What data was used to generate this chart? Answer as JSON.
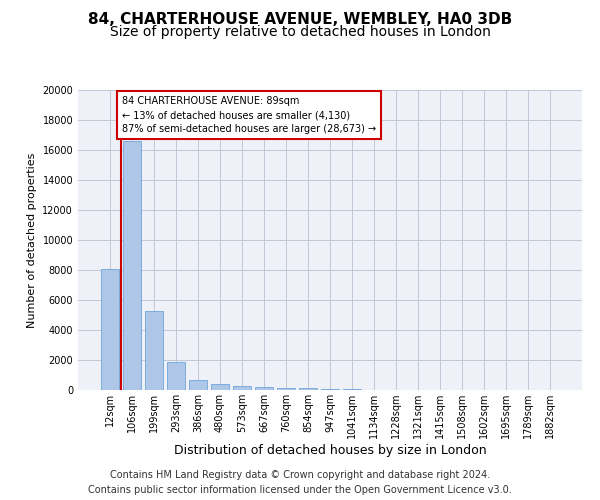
{
  "title1": "84, CHARTERHOUSE AVENUE, WEMBLEY, HA0 3DB",
  "title2": "Size of property relative to detached houses in London",
  "xlabel": "Distribution of detached houses by size in London",
  "ylabel": "Number of detached properties",
  "categories": [
    "12sqm",
    "106sqm",
    "199sqm",
    "293sqm",
    "386sqm",
    "480sqm",
    "573sqm",
    "667sqm",
    "760sqm",
    "854sqm",
    "947sqm",
    "1041sqm",
    "1134sqm",
    "1228sqm",
    "1321sqm",
    "1415sqm",
    "1508sqm",
    "1602sqm",
    "1695sqm",
    "1789sqm",
    "1882sqm"
  ],
  "values": [
    8100,
    16600,
    5300,
    1850,
    700,
    380,
    280,
    200,
    160,
    130,
    80,
    40,
    20,
    10,
    8,
    5,
    4,
    3,
    2,
    2,
    1
  ],
  "bar_color": "#aec6e8",
  "bar_edgecolor": "#5b9bd5",
  "grid_color": "#c0c8d8",
  "bg_color": "#eef2f8",
  "annotation_line1": "84 CHARTERHOUSE AVENUE: 89sqm",
  "annotation_line2": "← 13% of detached houses are smaller (4,130)",
  "annotation_line3": "87% of semi-detached houses are larger (28,673) →",
  "annotation_box_edgecolor": "#cc0000",
  "vline_color": "#cc0000",
  "ylim": [
    0,
    20000
  ],
  "yticks": [
    0,
    2000,
    4000,
    6000,
    8000,
    10000,
    12000,
    14000,
    16000,
    18000,
    20000
  ],
  "footer1": "Contains HM Land Registry data © Crown copyright and database right 2024.",
  "footer2": "Contains public sector information licensed under the Open Government Licence v3.0.",
  "title1_fontsize": 11,
  "title2_fontsize": 10,
  "xlabel_fontsize": 9,
  "ylabel_fontsize": 8,
  "tick_fontsize": 7,
  "footer_fontsize": 7,
  "fig_bg": "#ffffff"
}
